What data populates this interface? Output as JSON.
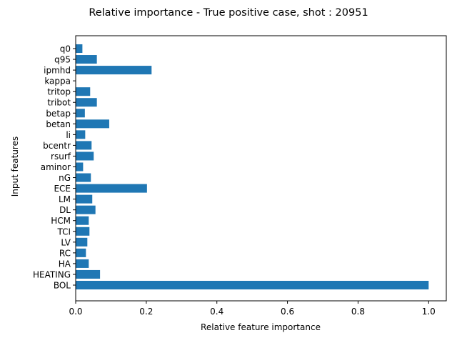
{
  "chart_data": {
    "type": "bar",
    "orientation": "horizontal",
    "title": "Relative importance - True positive case, shot : 20951",
    "xlabel": "Relative feature importance",
    "ylabel": "Input features",
    "xlim": [
      0,
      1.05
    ],
    "xticks": [
      "0.0",
      "0.2",
      "0.4",
      "0.6",
      "0.8",
      "1.0"
    ],
    "bar_color": "#1f77b4",
    "categories": [
      "BOL",
      "HEATING",
      "HA",
      "RC",
      "LV",
      "TCI",
      "HCM",
      "DL",
      "LM",
      "ECE",
      "nG",
      "aminor",
      "rsurf",
      "bcentr",
      "li",
      "betan",
      "betap",
      "tribot",
      "tritop",
      "kappa",
      "ipmhd",
      "q95",
      "q0"
    ],
    "values": [
      1.0,
      0.069,
      0.037,
      0.029,
      0.033,
      0.039,
      0.037,
      0.056,
      0.047,
      0.202,
      0.043,
      0.021,
      0.051,
      0.045,
      0.027,
      0.095,
      0.026,
      0.06,
      0.041,
      0.0,
      0.215,
      0.06,
      0.019
    ],
    "grid": false,
    "legend": "none"
  }
}
